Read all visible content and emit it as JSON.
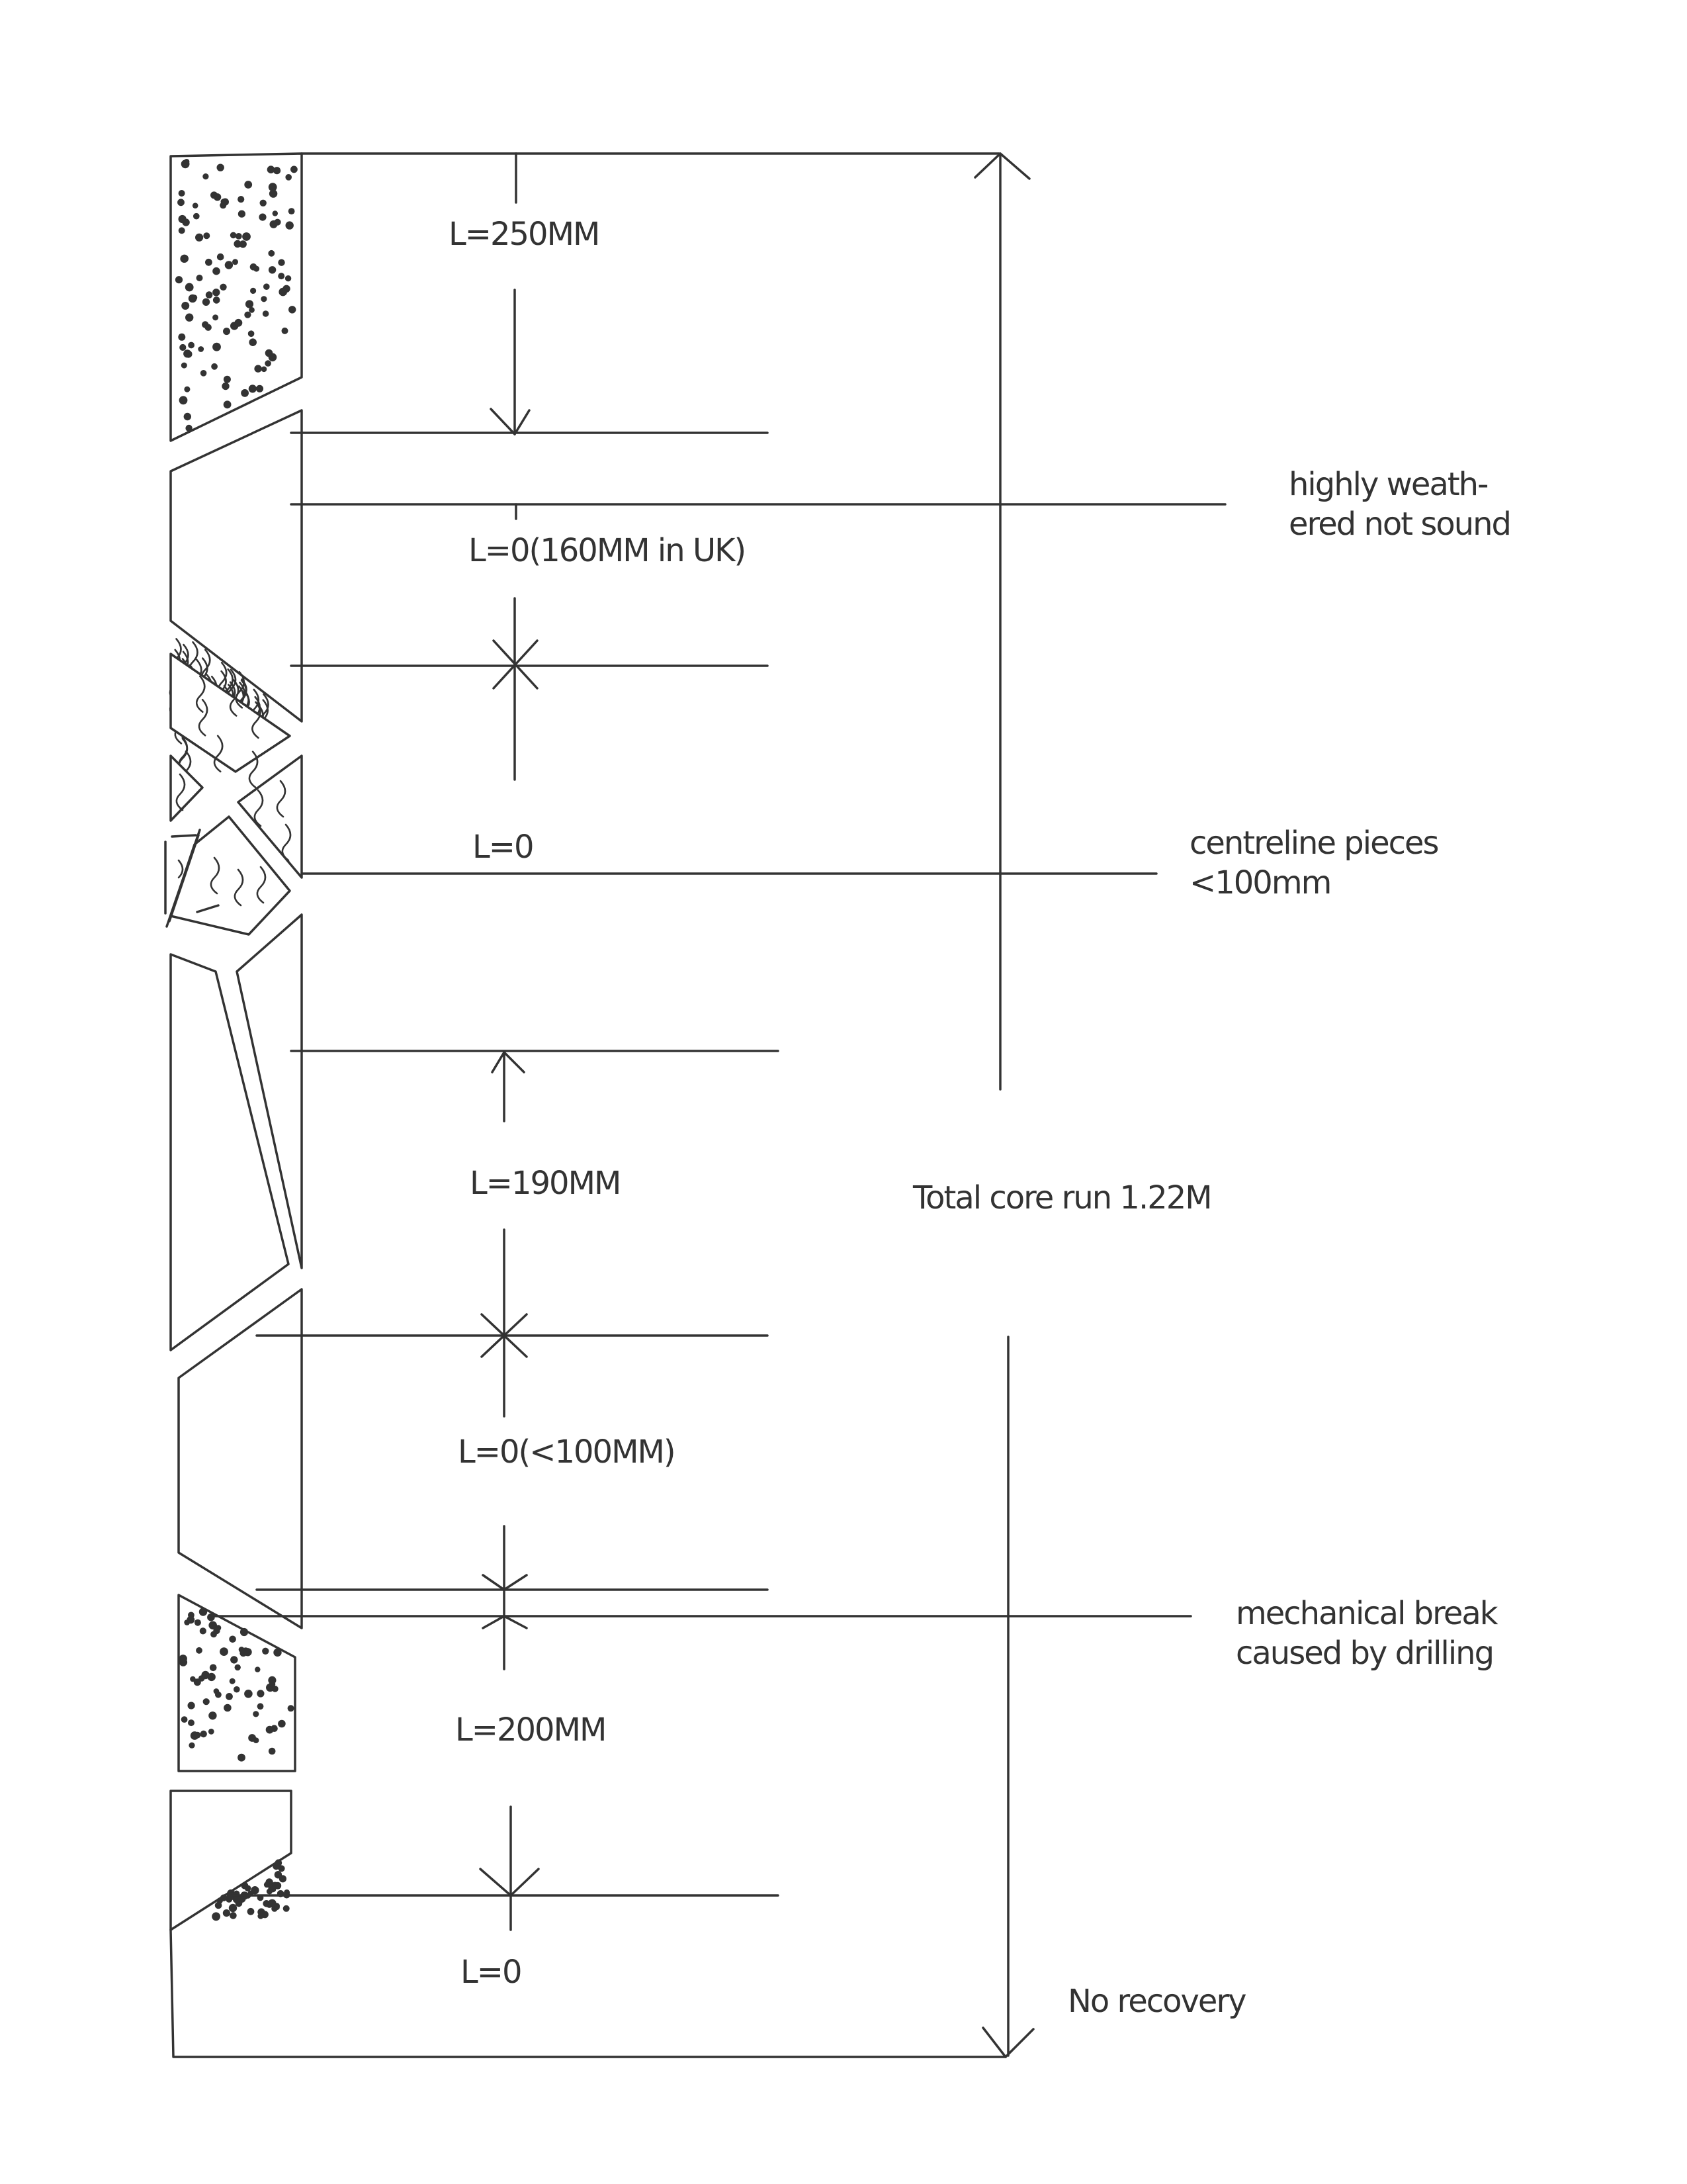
{
  "lengths": {
    "l1": "L=250MM",
    "l2": "L=0(160MM in UK)",
    "l3": "L=0",
    "l4": "L=190MM",
    "l5": "L=0(<100MM)",
    "l6": "L=200MM",
    "l7": "L=0"
  },
  "notes": {
    "weathered_line1": "highly weath-",
    "weathered_line2": "ered not sound",
    "centreline_line1": "centreline pieces",
    "centreline_line2": "<100mm",
    "total_core_run": "Total core run 1.22M",
    "mechanical_line1": "mechanical break",
    "mechanical_line2": "caused by drilling",
    "no_recovery": "No recovery"
  },
  "colors": {
    "ink": "#333333",
    "background": "#ffffff"
  }
}
